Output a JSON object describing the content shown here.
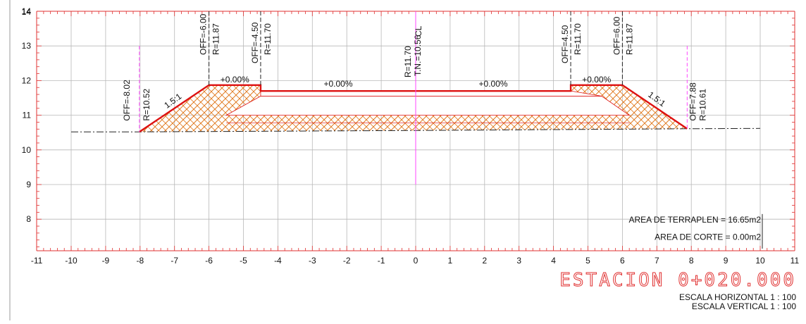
{
  "section": {
    "station_title": "ESTACION 0+020.000",
    "scale_horizontal": "ESCALA HORIZONTAL 1 : 100",
    "scale_vertical": "ESCALA VERTICAL 1 : 100",
    "area_terraplen": "AREA DE TERRAPLEN = 16.65m2",
    "area_corte": "AREA DE CORTE = 0.00m2",
    "x_ticks": [
      "-11",
      "-10",
      "-9",
      "-8",
      "-7",
      "-6",
      "-5",
      "-4",
      "-3",
      "-2",
      "-1",
      "0",
      "1",
      "2",
      "3",
      "4",
      "5",
      "6",
      "7",
      "8",
      "9",
      "10",
      "11"
    ],
    "y_ticks": [
      "8",
      "9",
      "10",
      "11",
      "12",
      "13",
      "14"
    ],
    "slopes": {
      "top_left": "+0.00%",
      "top_center_left": "+0.00%",
      "top_center_right": "+0.00%",
      "top_right": "+0.00%"
    },
    "ratios": {
      "left": "1.5:1",
      "right": "1.5:1"
    },
    "labels": {
      "off_left_toe": "OFF=-8.02",
      "r_left_toe": "R=10.52",
      "off_left_shoulder": "OFF=-6.00",
      "r_left_shoulder": "R=11.87",
      "off_left_inner": "OFF=-4.50",
      "r_left_inner": "R=11.70",
      "r_center": "R=11.70",
      "cl": "CL",
      "tn_center": "T.N.=10.56",
      "off_right_inner": "OFF=4.50",
      "r_right_inner": "R=11.70",
      "off_right_shoulder": "OFF=6.00",
      "r_right_shoulder": "R=11.87",
      "off_right_toe": "OFF=7.88",
      "r_right_toe": "R=10.61"
    },
    "colors": {
      "grid": "#9a9a9a",
      "axis": "#e03030",
      "fill": "#e07a20",
      "design": "#dd1111",
      "guide": "#ff44ff"
    }
  },
  "chart_data": {
    "type": "cross-section",
    "xlim": [
      -11,
      11
    ],
    "ylim": [
      7,
      14
    ],
    "grid": true,
    "ground_line": [
      [
        -10,
        10.52
      ],
      [
        -8.02,
        10.52
      ],
      [
        0,
        10.56
      ],
      [
        7.88,
        10.61
      ],
      [
        10,
        10.62
      ]
    ],
    "design_profile": [
      [
        -8.02,
        10.52
      ],
      [
        -6.0,
        11.87
      ],
      [
        -4.5,
        11.87
      ],
      [
        -4.5,
        11.7
      ],
      [
        4.5,
        11.7
      ],
      [
        4.5,
        11.87
      ],
      [
        6.0,
        11.87
      ],
      [
        7.88,
        10.61
      ]
    ],
    "inner_layers": [
      [
        [
          -4.5,
          11.5
        ],
        [
          -5.5,
          11.0
        ],
        [
          5.6,
          11.0
        ],
        [
          4.5,
          11.5
        ]
      ],
      [
        [
          -4.5,
          11.5
        ],
        [
          4.5,
          11.5
        ]
      ]
    ],
    "guides_x": [
      -8.02,
      0,
      7.88
    ],
    "ticks_x": [
      -6.0,
      -4.5,
      4.5,
      6.0
    ]
  }
}
